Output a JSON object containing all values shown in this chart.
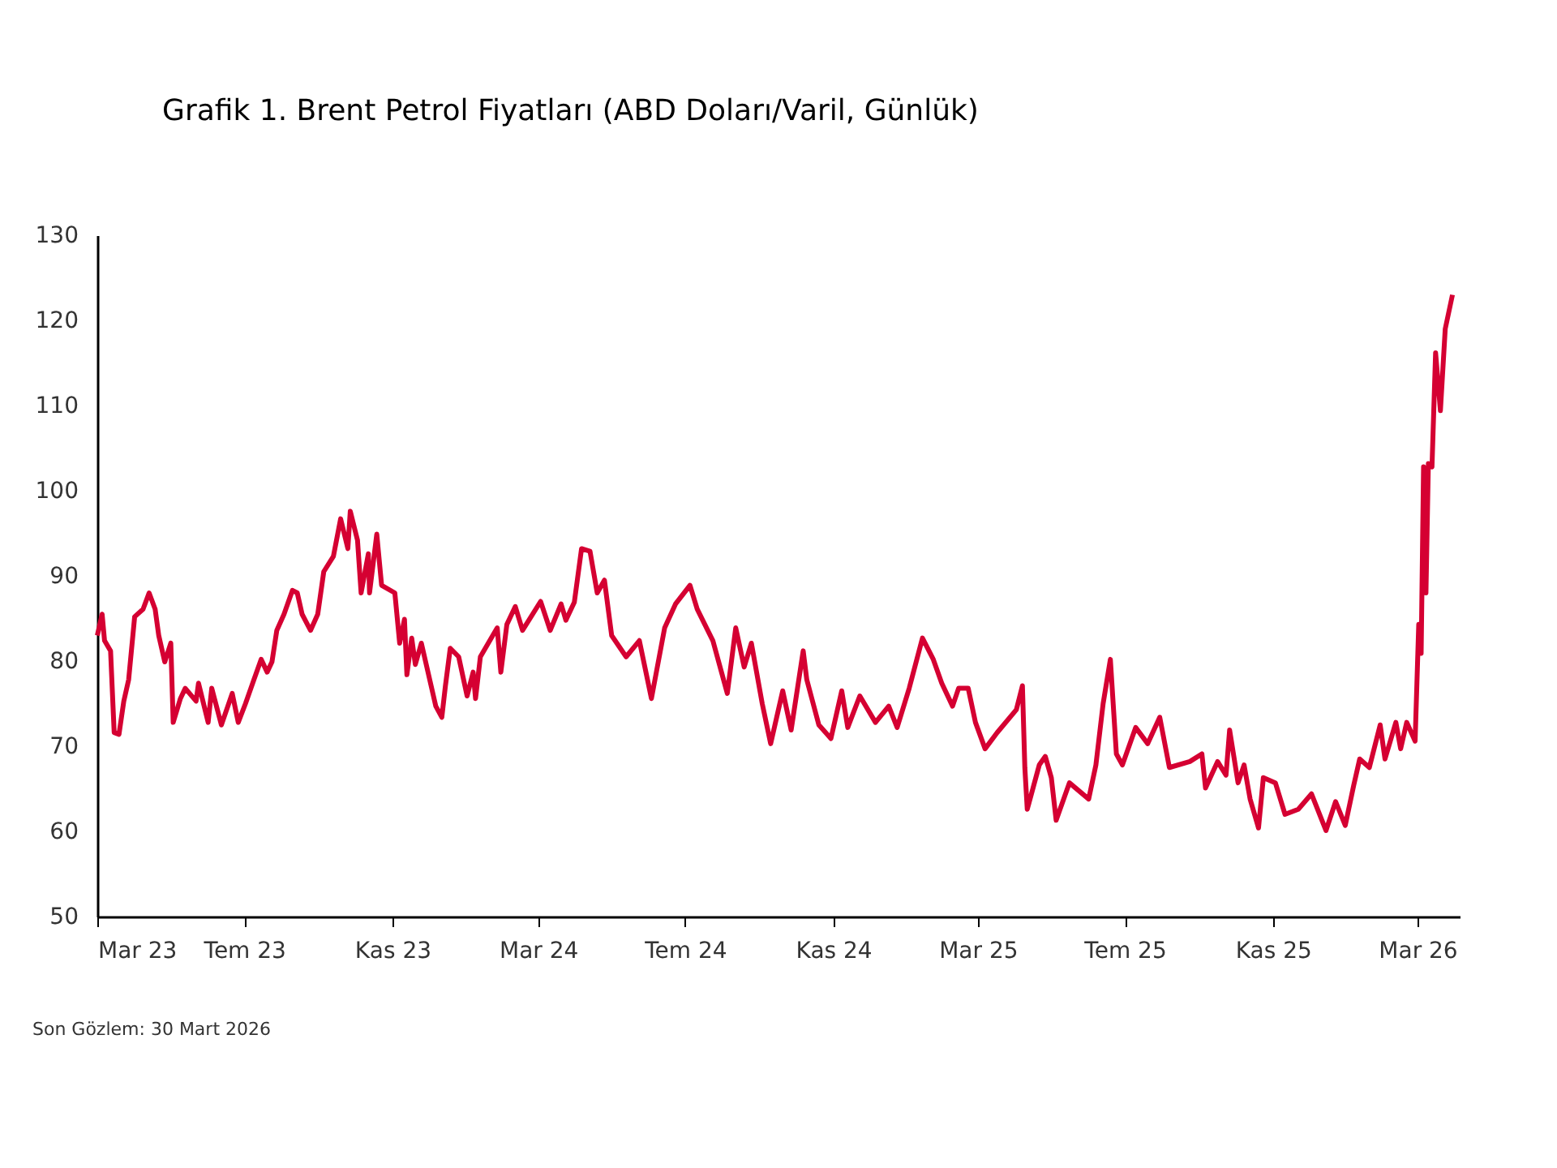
{
  "chart_data": {
    "type": "line",
    "title": "Grafik 1. Brent Petrol Fiyatları (ABD Doları/Varil, Günlük)",
    "annotations": [
      "Son Gözlem: 30 Mart 2026"
    ],
    "x": [
      "2023-03-01",
      "2023-03-05",
      "2023-03-07",
      "2023-03-12",
      "2023-03-15",
      "2023-03-19",
      "2023-03-23",
      "2023-03-27",
      "2023-04-01",
      "2023-04-08",
      "2023-04-13",
      "2023-04-18",
      "2023-04-21",
      "2023-04-26",
      "2023-05-01",
      "2023-05-03",
      "2023-05-09",
      "2023-05-13",
      "2023-05-22",
      "2023-05-24",
      "2023-06-01",
      "2023-06-04",
      "2023-06-12",
      "2023-06-21",
      "2023-06-26",
      "2023-07-02",
      "2023-07-09",
      "2023-07-15",
      "2023-07-20",
      "2023-07-24",
      "2023-07-28",
      "2023-08-03",
      "2023-08-10",
      "2023-08-14",
      "2023-08-18",
      "2023-08-25",
      "2023-08-31",
      "2023-09-05",
      "2023-09-13",
      "2023-09-19",
      "2023-09-25",
      "2023-09-27",
      "2023-10-03",
      "2023-10-06",
      "2023-10-12",
      "2023-10-13",
      "2023-10-19",
      "2023-10-23",
      "2023-11-03",
      "2023-11-07",
      "2023-11-11",
      "2023-11-13",
      "2023-11-17",
      "2023-11-20",
      "2023-11-25",
      "2023-12-07",
      "2023-12-12",
      "2023-12-15",
      "2023-12-19",
      "2023-12-26",
      "2024-01-02",
      "2024-01-07",
      "2024-01-09",
      "2024-01-13",
      "2024-01-22",
      "2024-01-27",
      "2024-01-30",
      "2024-02-04",
      "2024-02-11",
      "2024-02-17",
      "2024-03-03",
      "2024-03-11",
      "2024-03-20",
      "2024-03-24",
      "2024-03-31",
      "2024-04-06",
      "2024-04-13",
      "2024-04-19",
      "2024-04-25",
      "2024-05-01",
      "2024-05-13",
      "2024-05-24",
      "2024-06-03",
      "2024-06-14",
      "2024-06-23",
      "2024-07-05",
      "2024-07-11",
      "2024-07-24",
      "2024-08-05",
      "2024-08-12",
      "2024-08-19",
      "2024-08-25",
      "2024-09-03",
      "2024-09-10",
      "2024-09-20",
      "2024-09-27",
      "2024-10-07",
      "2024-10-10",
      "2024-10-20",
      "2024-10-30",
      "2024-11-08",
      "2024-11-13",
      "2024-11-23",
      "2024-12-06",
      "2024-12-17",
      "2024-12-24",
      "2025-01-03",
      "2025-01-14",
      "2025-01-23",
      "2025-01-30",
      "2025-02-08",
      "2025-02-13",
      "2025-02-21",
      "2025-02-27",
      "2025-03-07",
      "2025-03-17",
      "2025-04-02",
      "2025-04-07",
      "2025-04-09",
      "2025-04-11",
      "2025-04-21",
      "2025-04-26",
      "2025-05-01",
      "2025-05-05",
      "2025-05-16",
      "2025-06-01",
      "2025-06-07",
      "2025-06-13",
      "2025-06-19",
      "2025-06-24",
      "2025-06-29",
      "2025-07-10",
      "2025-07-20",
      "2025-07-30",
      "2025-08-07",
      "2025-08-24",
      "2025-09-03",
      "2025-09-06",
      "2025-09-16",
      "2025-09-23",
      "2025-09-26",
      "2025-10-03",
      "2025-10-08",
      "2025-10-13",
      "2025-10-20",
      "2025-10-24",
      "2025-11-03",
      "2025-11-11",
      "2025-11-22",
      "2025-12-03",
      "2025-12-15",
      "2025-12-23",
      "2025-12-31",
      "2026-01-07",
      "2026-01-12",
      "2026-01-20",
      "2026-01-29",
      "2026-02-02",
      "2026-02-11",
      "2026-02-15",
      "2026-02-20",
      "2026-02-27",
      "2026-03-02",
      "2026-03-04",
      "2026-03-06",
      "2026-03-08",
      "2026-03-10",
      "2026-03-13",
      "2026-03-16",
      "2026-03-20",
      "2026-03-24",
      "2026-03-30"
    ],
    "series": [
      {
        "color": "#d50032",
        "values": [
          83.0,
          85.5,
          82.4,
          81.2,
          71.6,
          71.4,
          75.3,
          77.8,
          85.2,
          86.1,
          88.0,
          86.1,
          83.0,
          79.9,
          82.1,
          72.8,
          75.6,
          76.8,
          75.3,
          77.4,
          72.8,
          76.8,
          72.5,
          76.2,
          72.8,
          75.0,
          77.8,
          80.2,
          78.7,
          79.9,
          83.6,
          85.5,
          88.3,
          88.0,
          85.5,
          83.6,
          85.5,
          90.5,
          92.3,
          96.7,
          93.2,
          97.6,
          94.2,
          88.0,
          92.6,
          88.0,
          94.9,
          88.9,
          88.0,
          82.1,
          84.9,
          78.4,
          82.7,
          79.6,
          82.1,
          74.7,
          73.4,
          77.1,
          81.5,
          80.5,
          75.9,
          78.7,
          75.6,
          80.5,
          82.7,
          83.9,
          78.7,
          84.3,
          86.4,
          83.6,
          87.0,
          83.6,
          86.7,
          84.8,
          86.9,
          93.2,
          92.9,
          88.0,
          89.5,
          83.0,
          80.5,
          82.4,
          75.6,
          83.9,
          86.7,
          88.9,
          86.1,
          82.4,
          76.2,
          83.9,
          79.3,
          82.1,
          75.0,
          70.3,
          76.5,
          71.9,
          81.2,
          77.8,
          72.5,
          70.9,
          76.5,
          72.2,
          75.9,
          72.8,
          74.7,
          72.2,
          76.8,
          82.7,
          80.2,
          77.4,
          74.7,
          76.8,
          76.8,
          72.8,
          69.7,
          71.6,
          74.3,
          77.1,
          67.5,
          62.6,
          67.8,
          68.8,
          66.3,
          61.3,
          65.7,
          63.8,
          67.8,
          75.0,
          80.2,
          69.1,
          67.8,
          72.2,
          70.3,
          73.4,
          67.5,
          68.2,
          69.1,
          65.1,
          68.2,
          66.6,
          71.9,
          65.7,
          67.8,
          63.8,
          60.4,
          66.3,
          65.7,
          62.0,
          62.6,
          64.4,
          60.1,
          63.5,
          60.7,
          65.4,
          68.5,
          67.5,
          72.5,
          68.5,
          72.8,
          69.7,
          72.8,
          70.6,
          84.3,
          80.9,
          102.8,
          88.0,
          103.2,
          102.8,
          116.2,
          109.4,
          119.0,
          123.0
        ]
      }
    ],
    "xlim": [
      "2023-03-01",
      "2026-04-05"
    ],
    "xticks": [
      {
        "value": "2023-03-01",
        "label": "Mar 23"
      },
      {
        "value": "2023-07-01",
        "label": "Tem 23"
      },
      {
        "value": "2023-11-01",
        "label": "Kas 23"
      },
      {
        "value": "2024-03-01",
        "label": "Mar 24"
      },
      {
        "value": "2024-07-01",
        "label": "Tem 24"
      },
      {
        "value": "2024-11-01",
        "label": "Kas 24"
      },
      {
        "value": "2025-03-01",
        "label": "Mar 25"
      },
      {
        "value": "2025-07-01",
        "label": "Tem 25"
      },
      {
        "value": "2025-11-01",
        "label": "Kas 25"
      },
      {
        "value": "2026-03-01",
        "label": "Mar 26"
      }
    ],
    "ylim": [
      50,
      130
    ],
    "yticks": [
      50,
      60,
      70,
      80,
      90,
      100,
      110,
      120,
      130
    ],
    "grid": false,
    "marker": "none",
    "line_style": "solid"
  }
}
